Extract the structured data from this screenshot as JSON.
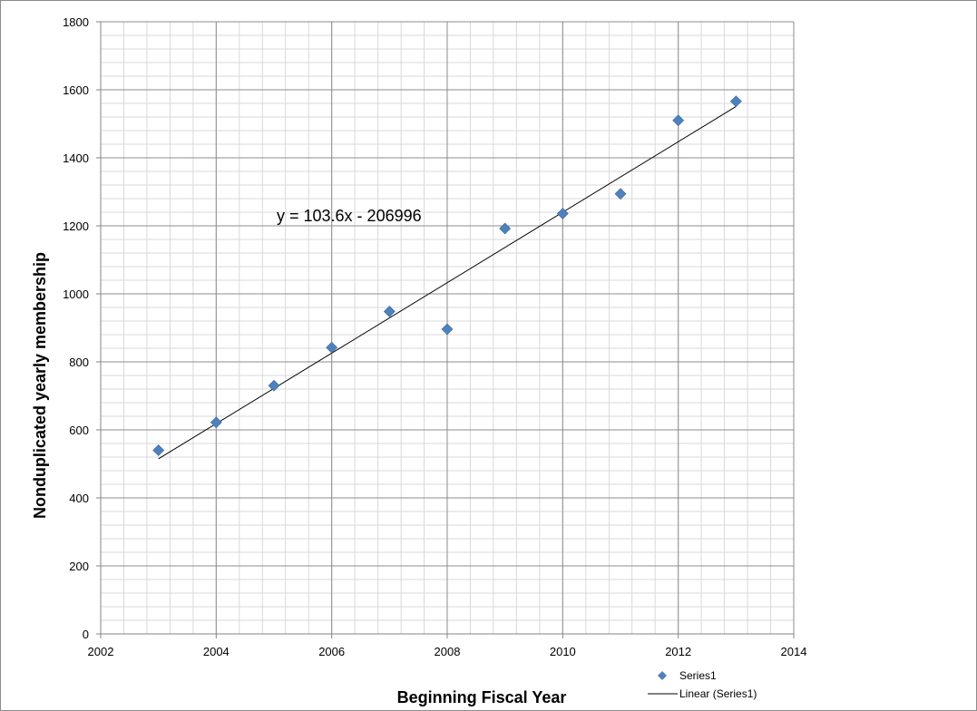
{
  "chart_data": {
    "type": "scatter",
    "xlabel": "Beginning Fiscal Year",
    "ylabel": "Nonduplicated yearly membership",
    "xlim": [
      2002,
      2014
    ],
    "ylim": [
      0,
      1800
    ],
    "x_major_step": 2,
    "y_major_step": 200,
    "x_minor_step": 0.4,
    "y_minor_step": 40,
    "grid": true,
    "series": [
      {
        "name": "Series1",
        "marker": "diamond",
        "color": "#4f81bd",
        "x": [
          2003,
          2004,
          2005,
          2006,
          2007,
          2008,
          2009,
          2010,
          2011,
          2012,
          2013
        ],
        "y": [
          540,
          622,
          730,
          842,
          948,
          896,
          1192,
          1236,
          1294,
          1510,
          1566
        ]
      }
    ],
    "trendline": {
      "name": "Linear (Series1)",
      "type": "linear",
      "slope": 103.6,
      "intercept": -206996,
      "x_from": 2003,
      "x_to": 2013,
      "color": "#000000",
      "equation": "y = 103.6x - 206996"
    },
    "legend_position": "bottom-right",
    "legend": [
      "Series1",
      "Linear (Series1)"
    ]
  }
}
